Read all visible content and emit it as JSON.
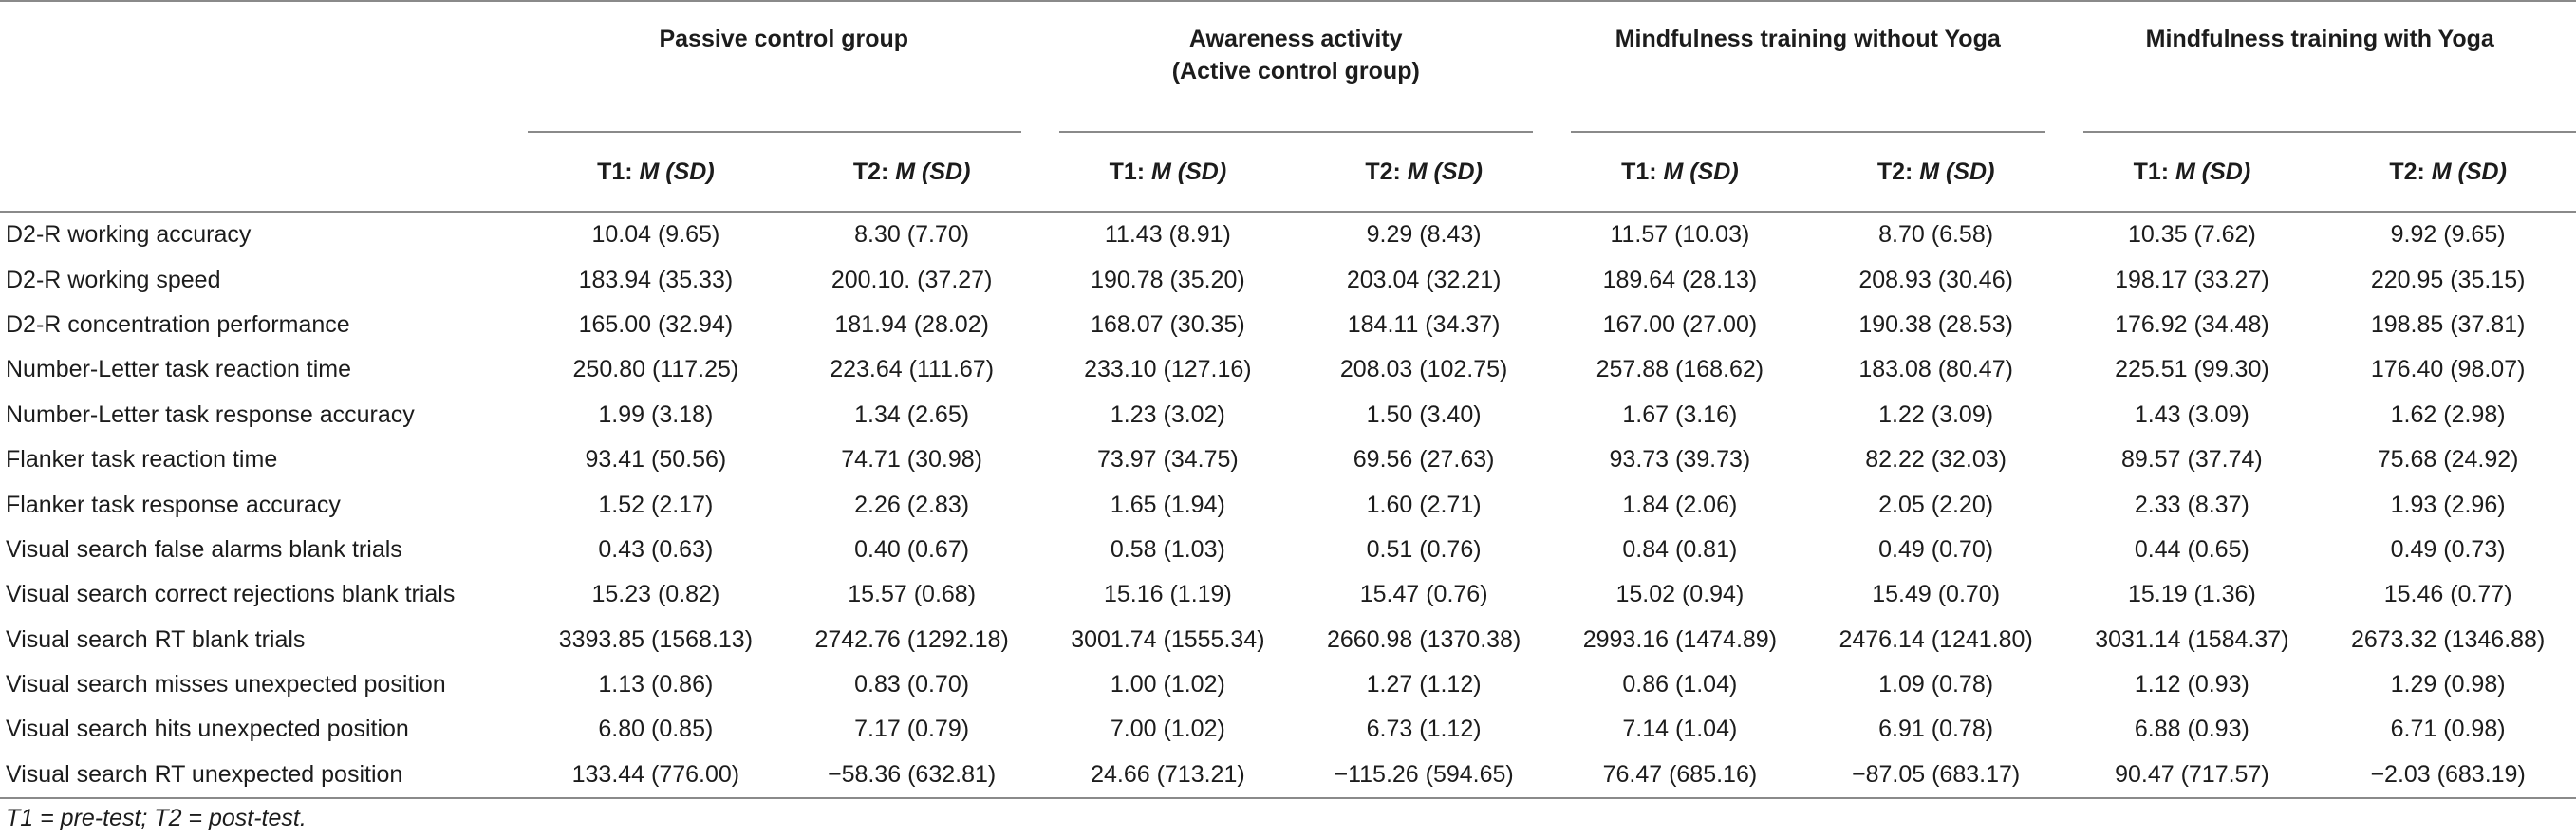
{
  "table": {
    "groups": [
      {
        "label_line1": "Passive control group",
        "label_line2": ""
      },
      {
        "label_line1": "Awareness activity",
        "label_line2": "(Active control group)"
      },
      {
        "label_line1": "Mindfulness training without Yoga",
        "label_line2": ""
      },
      {
        "label_line1": "Mindfulness training with Yoga",
        "label_line2": ""
      }
    ],
    "subheaders": [
      {
        "prefix": "T1: ",
        "stat": "M (SD)"
      },
      {
        "prefix": "T2: ",
        "stat": "M (SD)"
      },
      {
        "prefix": "T1: ",
        "stat": "M (SD)"
      },
      {
        "prefix": "T2: ",
        "stat": "M (SD)"
      },
      {
        "prefix": "T1: ",
        "stat": "M (SD)"
      },
      {
        "prefix": "T2: ",
        "stat": "M (SD)"
      },
      {
        "prefix": "T1: ",
        "stat": "M (SD)"
      },
      {
        "prefix": "T2: ",
        "stat": "M (SD)"
      }
    ],
    "rows": [
      {
        "label": "D2-R working accuracy",
        "values": [
          "10.04 (9.65)",
          "8.30 (7.70)",
          "11.43 (8.91)",
          "9.29 (8.43)",
          "11.57 (10.03)",
          "8.70 (6.58)",
          "10.35 (7.62)",
          "9.92 (9.65)"
        ]
      },
      {
        "label": "D2-R working speed",
        "values": [
          "183.94 (35.33)",
          "200.10. (37.27)",
          "190.78 (35.20)",
          "203.04 (32.21)",
          "189.64 (28.13)",
          "208.93 (30.46)",
          "198.17 (33.27)",
          "220.95 (35.15)"
        ]
      },
      {
        "label": "D2-R concentration performance",
        "values": [
          "165.00 (32.94)",
          "181.94 (28.02)",
          "168.07 (30.35)",
          "184.11 (34.37)",
          "167.00 (27.00)",
          "190.38 (28.53)",
          "176.92 (34.48)",
          "198.85 (37.81)"
        ]
      },
      {
        "label": "Number-Letter task reaction time",
        "values": [
          "250.80 (117.25)",
          "223.64 (111.67)",
          "233.10 (127.16)",
          "208.03 (102.75)",
          "257.88 (168.62)",
          "183.08 (80.47)",
          "225.51 (99.30)",
          "176.40 (98.07)"
        ]
      },
      {
        "label": "Number-Letter task response accuracy",
        "values": [
          "1.99 (3.18)",
          "1.34 (2.65)",
          "1.23 (3.02)",
          "1.50 (3.40)",
          "1.67 (3.16)",
          "1.22 (3.09)",
          "1.43 (3.09)",
          "1.62 (2.98)"
        ]
      },
      {
        "label": "Flanker task reaction time",
        "values": [
          "93.41 (50.56)",
          "74.71 (30.98)",
          "73.97 (34.75)",
          "69.56 (27.63)",
          "93.73 (39.73)",
          "82.22 (32.03)",
          "89.57 (37.74)",
          "75.68 (24.92)"
        ]
      },
      {
        "label": "Flanker task response accuracy",
        "values": [
          "1.52 (2.17)",
          "2.26 (2.83)",
          "1.65 (1.94)",
          "1.60 (2.71)",
          "1.84 (2.06)",
          "2.05 (2.20)",
          "2.33 (8.37)",
          "1.93 (2.96)"
        ]
      },
      {
        "label": "Visual search false alarms blank trials",
        "values": [
          "0.43 (0.63)",
          "0.40 (0.67)",
          "0.58 (1.03)",
          "0.51 (0.76)",
          "0.84 (0.81)",
          "0.49 (0.70)",
          "0.44 (0.65)",
          "0.49 (0.73)"
        ]
      },
      {
        "label": "Visual search correct rejections blank trials",
        "values": [
          "15.23 (0.82)",
          "15.57 (0.68)",
          "15.16 (1.19)",
          "15.47 (0.76)",
          "15.02 (0.94)",
          "15.49 (0.70)",
          "15.19 (1.36)",
          "15.46 (0.77)"
        ]
      },
      {
        "label": "Visual search RT blank trials",
        "values": [
          "3393.85 (1568.13)",
          "2742.76 (1292.18)",
          "3001.74 (1555.34)",
          "2660.98 (1370.38)",
          "2993.16 (1474.89)",
          "2476.14 (1241.80)",
          "3031.14 (1584.37)",
          "2673.32 (1346.88)"
        ]
      },
      {
        "label": "Visual search misses unexpected position",
        "values": [
          "1.13 (0.86)",
          "0.83 (0.70)",
          "1.00 (1.02)",
          "1.27 (1.12)",
          "0.86 (1.04)",
          "1.09 (0.78)",
          "1.12 (0.93)",
          "1.29 (0.98)"
        ]
      },
      {
        "label": "Visual search hits unexpected position",
        "values": [
          "6.80 (0.85)",
          "7.17 (0.79)",
          "7.00 (1.02)",
          "6.73 (1.12)",
          "7.14 (1.04)",
          "6.91 (0.78)",
          "6.88 (0.93)",
          "6.71 (0.98)"
        ]
      },
      {
        "label": "Visual search RT unexpected position",
        "values": [
          "133.44 (776.00)",
          "−58.36 (632.81)",
          "24.66 (713.21)",
          "−115.26 (594.65)",
          "76.47 (685.16)",
          "−87.05 (683.17)",
          "90.47 (717.57)",
          "−2.03 (683.19)"
        ]
      }
    ],
    "footnote": "T1 = pre-test; T2 = post-test."
  }
}
